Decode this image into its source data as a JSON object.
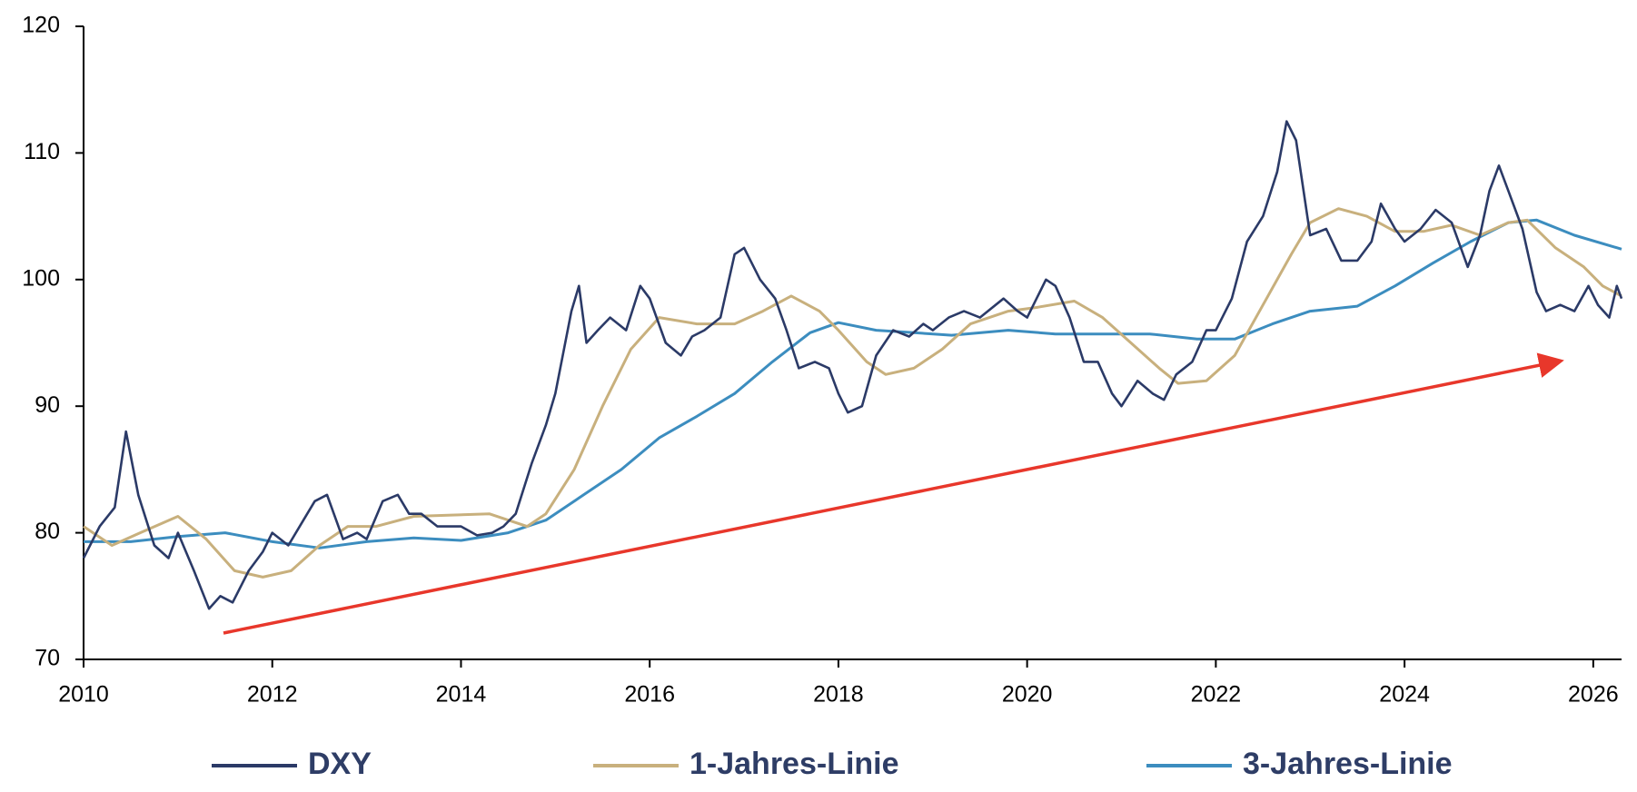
{
  "chart_data": {
    "type": "line",
    "xlim": [
      2010,
      2026.3
    ],
    "xticks": [
      2010,
      2012,
      2014,
      2016,
      2018,
      2020,
      2022,
      2024,
      2026
    ],
    "ylim": [
      70,
      120
    ],
    "yticks": [
      70,
      80,
      90,
      100,
      110,
      120
    ],
    "grid": false,
    "legend": "bottom",
    "series": [
      {
        "name": "DXY",
        "color": "#2b3a67",
        "x": [
          2010.0,
          2010.17,
          2010.33,
          2010.45,
          2010.58,
          2010.75,
          2010.9,
          2011.0,
          2011.17,
          2011.33,
          2011.45,
          2011.58,
          2011.75,
          2011.9,
          2012.0,
          2012.17,
          2012.33,
          2012.45,
          2012.58,
          2012.75,
          2012.9,
          2013.0,
          2013.17,
          2013.33,
          2013.45,
          2013.58,
          2013.75,
          2013.9,
          2014.0,
          2014.17,
          2014.33,
          2014.45,
          2014.58,
          2014.75,
          2014.9,
          2015.0,
          2015.17,
          2015.25,
          2015.33,
          2015.45,
          2015.58,
          2015.75,
          2015.9,
          2016.0,
          2016.17,
          2016.33,
          2016.45,
          2016.58,
          2016.75,
          2016.9,
          2017.0,
          2017.17,
          2017.33,
          2017.45,
          2017.58,
          2017.75,
          2017.9,
          2018.0,
          2018.1,
          2018.25,
          2018.4,
          2018.58,
          2018.75,
          2018.9,
          2019.0,
          2019.17,
          2019.33,
          2019.5,
          2019.75,
          2019.9,
          2020.0,
          2020.2,
          2020.3,
          2020.45,
          2020.6,
          2020.75,
          2020.9,
          2021.0,
          2021.17,
          2021.33,
          2021.45,
          2021.58,
          2021.75,
          2021.9,
          2022.0,
          2022.17,
          2022.33,
          2022.5,
          2022.65,
          2022.75,
          2022.85,
          2023.0,
          2023.17,
          2023.33,
          2023.5,
          2023.65,
          2023.75,
          2023.9,
          2024.0,
          2024.17,
          2024.33,
          2024.5,
          2024.67,
          2024.8,
          2024.9,
          2025.0,
          2025.1,
          2025.25,
          2025.4,
          2025.5,
          2025.65,
          2025.8,
          2025.95,
          2026.05,
          2026.17,
          2026.25,
          2026.3
        ],
        "values": [
          78,
          80.5,
          82,
          88,
          83,
          79,
          78,
          80,
          77,
          74,
          75,
          74.5,
          77,
          78.5,
          80,
          79,
          81,
          82.5,
          83,
          79.5,
          80,
          79.5,
          82.5,
          83,
          81.5,
          81.5,
          80.5,
          80.5,
          80.5,
          79.8,
          80,
          80.5,
          81.5,
          85.5,
          88.5,
          91,
          97.5,
          99.5,
          95,
          96,
          97,
          96,
          99.5,
          98.5,
          95,
          94,
          95.5,
          96,
          97,
          102,
          102.5,
          100,
          98.5,
          96,
          93,
          93.5,
          93,
          91,
          89.5,
          90,
          94,
          96,
          95.5,
          96.5,
          96,
          97,
          97.5,
          97,
          98.5,
          97.5,
          97,
          100,
          99.5,
          97,
          93.5,
          93.5,
          91,
          90,
          92,
          91,
          90.5,
          92.5,
          93.5,
          96,
          96,
          98.5,
          103,
          105,
          108.5,
          112.5,
          111,
          103.5,
          104,
          101.5,
          101.5,
          103,
          106,
          104,
          103,
          104,
          105.5,
          104.5,
          101,
          103.5,
          107,
          109,
          107,
          104,
          99,
          97.5,
          98,
          97.5,
          99.5,
          98,
          97,
          99.5,
          98.5
        ]
      },
      {
        "name": "1-Jahres-Linie",
        "color": "#c8b07d",
        "x": [
          2010.0,
          2010.3,
          2010.6,
          2011.0,
          2011.3,
          2011.6,
          2011.9,
          2012.2,
          2012.5,
          2012.8,
          2013.1,
          2013.5,
          2013.9,
          2014.3,
          2014.7,
          2014.9,
          2015.2,
          2015.5,
          2015.8,
          2016.1,
          2016.5,
          2016.9,
          2017.2,
          2017.5,
          2017.8,
          2018.0,
          2018.3,
          2018.5,
          2018.8,
          2019.1,
          2019.4,
          2019.8,
          2020.1,
          2020.5,
          2020.8,
          2021.1,
          2021.4,
          2021.6,
          2021.9,
          2022.2,
          2022.5,
          2022.8,
          2023.0,
          2023.3,
          2023.6,
          2023.9,
          2024.2,
          2024.5,
          2024.8,
          2025.1,
          2025.3,
          2025.6,
          2025.9,
          2026.1,
          2026.3
        ],
        "values": [
          80.5,
          79,
          80,
          81.3,
          79.5,
          77,
          76.5,
          77,
          79,
          80.5,
          80.5,
          81.3,
          81.4,
          81.5,
          80.5,
          81.5,
          85,
          90,
          94.5,
          97,
          96.5,
          96.5,
          97.5,
          98.7,
          97.5,
          96,
          93.5,
          92.5,
          93,
          94.5,
          96.5,
          97.5,
          97.8,
          98.3,
          97,
          95,
          93,
          91.8,
          92,
          94,
          98,
          102,
          104.5,
          105.6,
          105,
          103.8,
          103.8,
          104.3,
          103.5,
          104.5,
          104.7,
          102.5,
          101,
          99.5,
          98.7
        ]
      },
      {
        "name": "3-Jahres-Linie",
        "color": "#3c8dbf",
        "x": [
          2010.0,
          2010.5,
          2011.0,
          2011.5,
          2012.0,
          2012.5,
          2013.0,
          2013.5,
          2014.0,
          2014.5,
          2014.9,
          2015.3,
          2015.7,
          2016.1,
          2016.5,
          2016.9,
          2017.3,
          2017.7,
          2018.0,
          2018.4,
          2018.8,
          2019.2,
          2019.8,
          2020.3,
          2020.8,
          2021.3,
          2021.8,
          2022.2,
          2022.6,
          2023.0,
          2023.5,
          2023.9,
          2024.3,
          2024.7,
          2025.1,
          2025.4,
          2025.8,
          2026.3
        ],
        "values": [
          79.3,
          79.3,
          79.7,
          80,
          79.3,
          78.8,
          79.3,
          79.6,
          79.4,
          80,
          81,
          83,
          85,
          87.5,
          89.2,
          91,
          93.5,
          95.8,
          96.6,
          96,
          95.8,
          95.6,
          96,
          95.7,
          95.7,
          95.7,
          95.3,
          95.3,
          96.5,
          97.5,
          97.9,
          99.5,
          101.3,
          103,
          104.5,
          104.7,
          103.5,
          102.4
        ]
      }
    ]
  }
}
